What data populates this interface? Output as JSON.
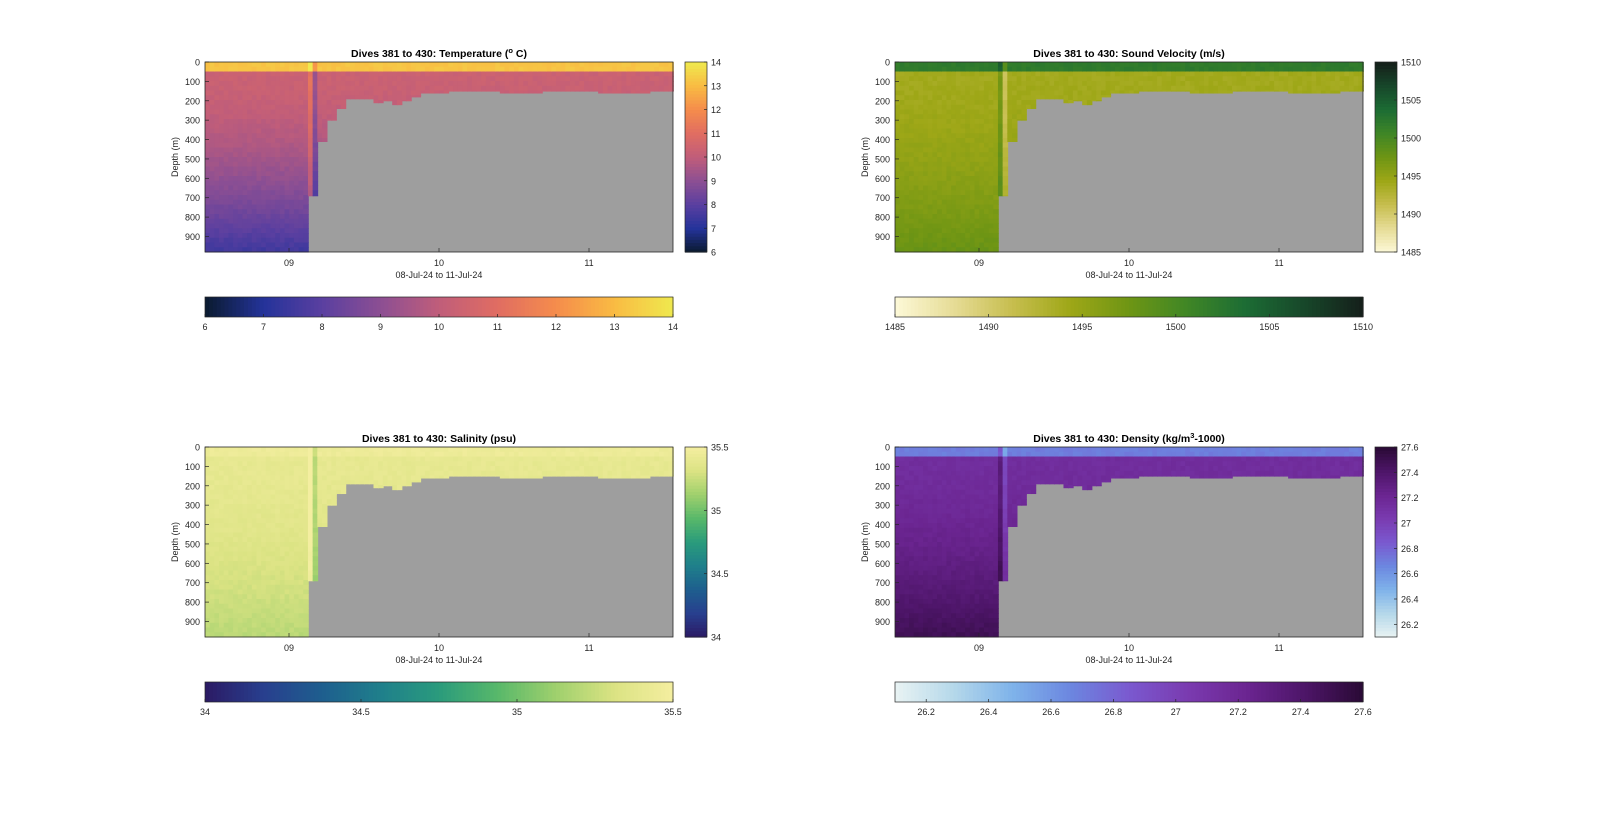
{
  "figure": {
    "background": "#ffffff",
    "land_color": "#9e9e9e"
  },
  "chart_data": [
    {
      "type": "heatmap",
      "id": "temperature",
      "title_prefix": "Dives 381 to 430: Temperature (",
      "title_sup": "o",
      "title_suffix": " C)",
      "xlabel": "08-Jul-24 to 11-Jul-24",
      "ylabel": "Depth (m)",
      "xlim": [
        8.44,
        11.56
      ],
      "ylim": [
        0,
        980
      ],
      "x_ticks": [
        {
          "v": 9,
          "label": "09"
        },
        {
          "v": 10,
          "label": "10"
        },
        {
          "v": 11,
          "label": "11"
        }
      ],
      "y_ticks": [
        0,
        100,
        200,
        300,
        400,
        500,
        600,
        700,
        800,
        900
      ],
      "colorbar_side": {
        "min": 6,
        "max": 14,
        "ticks": [
          6,
          7,
          8,
          9,
          10,
          11,
          12,
          13,
          14
        ]
      },
      "colorbar_bottom": {
        "min": 6,
        "max": 14,
        "ticks": [
          6,
          7,
          8,
          9,
          10,
          11,
          12,
          13,
          14
        ]
      },
      "colormap": [
        "#0a1a2e",
        "#24339a",
        "#5a3fa0",
        "#8c4f93",
        "#c05d7a",
        "#e06d62",
        "#f58c4c",
        "#f9bb43",
        "#efe94e"
      ],
      "surface_value": 13.2,
      "subsurface_value": 10.3,
      "deep_value": 7.4,
      "mixed_layer_depth": 60
    },
    {
      "type": "heatmap",
      "id": "sound_velocity",
      "title_prefix": "Dives 381 to 430: Sound Velocity (m/s)",
      "title_sup": "",
      "title_suffix": "",
      "xlabel": "08-Jul-24 to 11-Jul-24",
      "ylabel": "Depth (m)",
      "xlim": [
        8.44,
        11.56
      ],
      "ylim": [
        0,
        980
      ],
      "x_ticks": [
        {
          "v": 9,
          "label": "09"
        },
        {
          "v": 10,
          "label": "10"
        },
        {
          "v": 11,
          "label": "11"
        }
      ],
      "y_ticks": [
        0,
        100,
        200,
        300,
        400,
        500,
        600,
        700,
        800,
        900
      ],
      "colorbar_side": {
        "min": 1485,
        "max": 1510,
        "ticks": [
          1485,
          1490,
          1495,
          1500,
          1505,
          1510
        ]
      },
      "colorbar_bottom": {
        "min": 1485,
        "max": 1510,
        "ticks": [
          1485,
          1490,
          1495,
          1500,
          1505,
          1510
        ]
      },
      "colormap": [
        "#fdf9d8",
        "#e6dc96",
        "#c7be4f",
        "#9ea717",
        "#6e9514",
        "#3f8626",
        "#1c6c34",
        "#17472a",
        "#151f1a"
      ],
      "surface_value": 1502,
      "subsurface_value": 1494,
      "deep_value": 1498,
      "mixed_layer_depth": 60
    },
    {
      "type": "heatmap",
      "id": "salinity",
      "title_prefix": "Dives 381 to 430: Salinity (psu)",
      "title_sup": "",
      "title_suffix": "",
      "xlabel": "08-Jul-24 to 11-Jul-24",
      "ylabel": "Depth (m)",
      "xlim": [
        8.44,
        11.56
      ],
      "ylim": [
        0,
        980
      ],
      "x_ticks": [
        {
          "v": 9,
          "label": "09"
        },
        {
          "v": 10,
          "label": "10"
        },
        {
          "v": 11,
          "label": "11"
        }
      ],
      "y_ticks": [
        0,
        100,
        200,
        300,
        400,
        500,
        600,
        700,
        800,
        900
      ],
      "colorbar_side": {
        "min": 34,
        "max": 35.5,
        "ticks": [
          34,
          34.5,
          35,
          35.5
        ]
      },
      "colorbar_bottom": {
        "min": 34,
        "max": 35.5,
        "ticks": [
          34,
          34.5,
          35,
          35.5
        ]
      },
      "colormap": [
        "#2b1a64",
        "#283f8e",
        "#1e5e8e",
        "#1f7f8b",
        "#2a9b7c",
        "#58b86a",
        "#9fd06d",
        "#dbe383",
        "#f4eea0"
      ],
      "surface_value": 35.45,
      "subsurface_value": 35.4,
      "deep_value": 35.2,
      "mixed_layer_depth": 60
    },
    {
      "type": "heatmap",
      "id": "density",
      "title_prefix": "Dives 381 to 430: Density (kg/m",
      "title_sup": "3",
      "title_suffix": "-1000)",
      "xlabel": "08-Jul-24 to 11-Jul-24",
      "ylabel": "Depth (m)",
      "xlim": [
        8.44,
        11.56
      ],
      "ylim": [
        0,
        980
      ],
      "x_ticks": [
        {
          "v": 9,
          "label": "09"
        },
        {
          "v": 10,
          "label": "10"
        },
        {
          "v": 11,
          "label": "11"
        }
      ],
      "y_ticks": [
        0,
        100,
        200,
        300,
        400,
        500,
        600,
        700,
        800,
        900
      ],
      "colorbar_side": {
        "min": 26.1,
        "max": 27.6,
        "ticks": [
          26.2,
          26.4,
          26.6,
          26.8,
          27,
          27.2,
          27.4,
          27.6
        ]
      },
      "colorbar_bottom": {
        "min": 26.1,
        "max": 27.6,
        "ticks": [
          26.2,
          26.4,
          26.6,
          26.8,
          27,
          27.2,
          27.4,
          27.6
        ]
      },
      "colormap": [
        "#e9f3f3",
        "#b5d8ea",
        "#7fb3ea",
        "#6c87e0",
        "#7a59cf",
        "#7a3bb0",
        "#6b2591",
        "#4d1568",
        "#2a0a35"
      ],
      "surface_value": 26.7,
      "subsurface_value": 27.15,
      "deep_value": 27.5,
      "mixed_layer_depth": 60
    }
  ],
  "bathymetry": {
    "x": [
      8.44,
      9.12,
      9.12,
      9.19,
      9.19,
      9.25,
      9.25,
      9.31,
      9.31,
      9.38,
      9.38,
      9.55,
      9.55,
      9.62,
      9.62,
      9.68,
      9.68,
      9.75,
      9.75,
      9.82,
      9.82,
      9.88,
      9.88,
      10.05,
      10.05,
      10.4,
      10.4,
      10.7,
      10.7,
      11.05,
      11.05,
      11.4,
      11.4,
      11.56
    ],
    "depth": [
      1000,
      1000,
      690,
      690,
      410,
      410,
      300,
      300,
      240,
      240,
      190,
      190,
      210,
      210,
      200,
      200,
      220,
      220,
      200,
      200,
      180,
      180,
      160,
      160,
      150,
      150,
      160,
      160,
      150,
      150,
      160,
      160,
      150,
      150
    ]
  }
}
